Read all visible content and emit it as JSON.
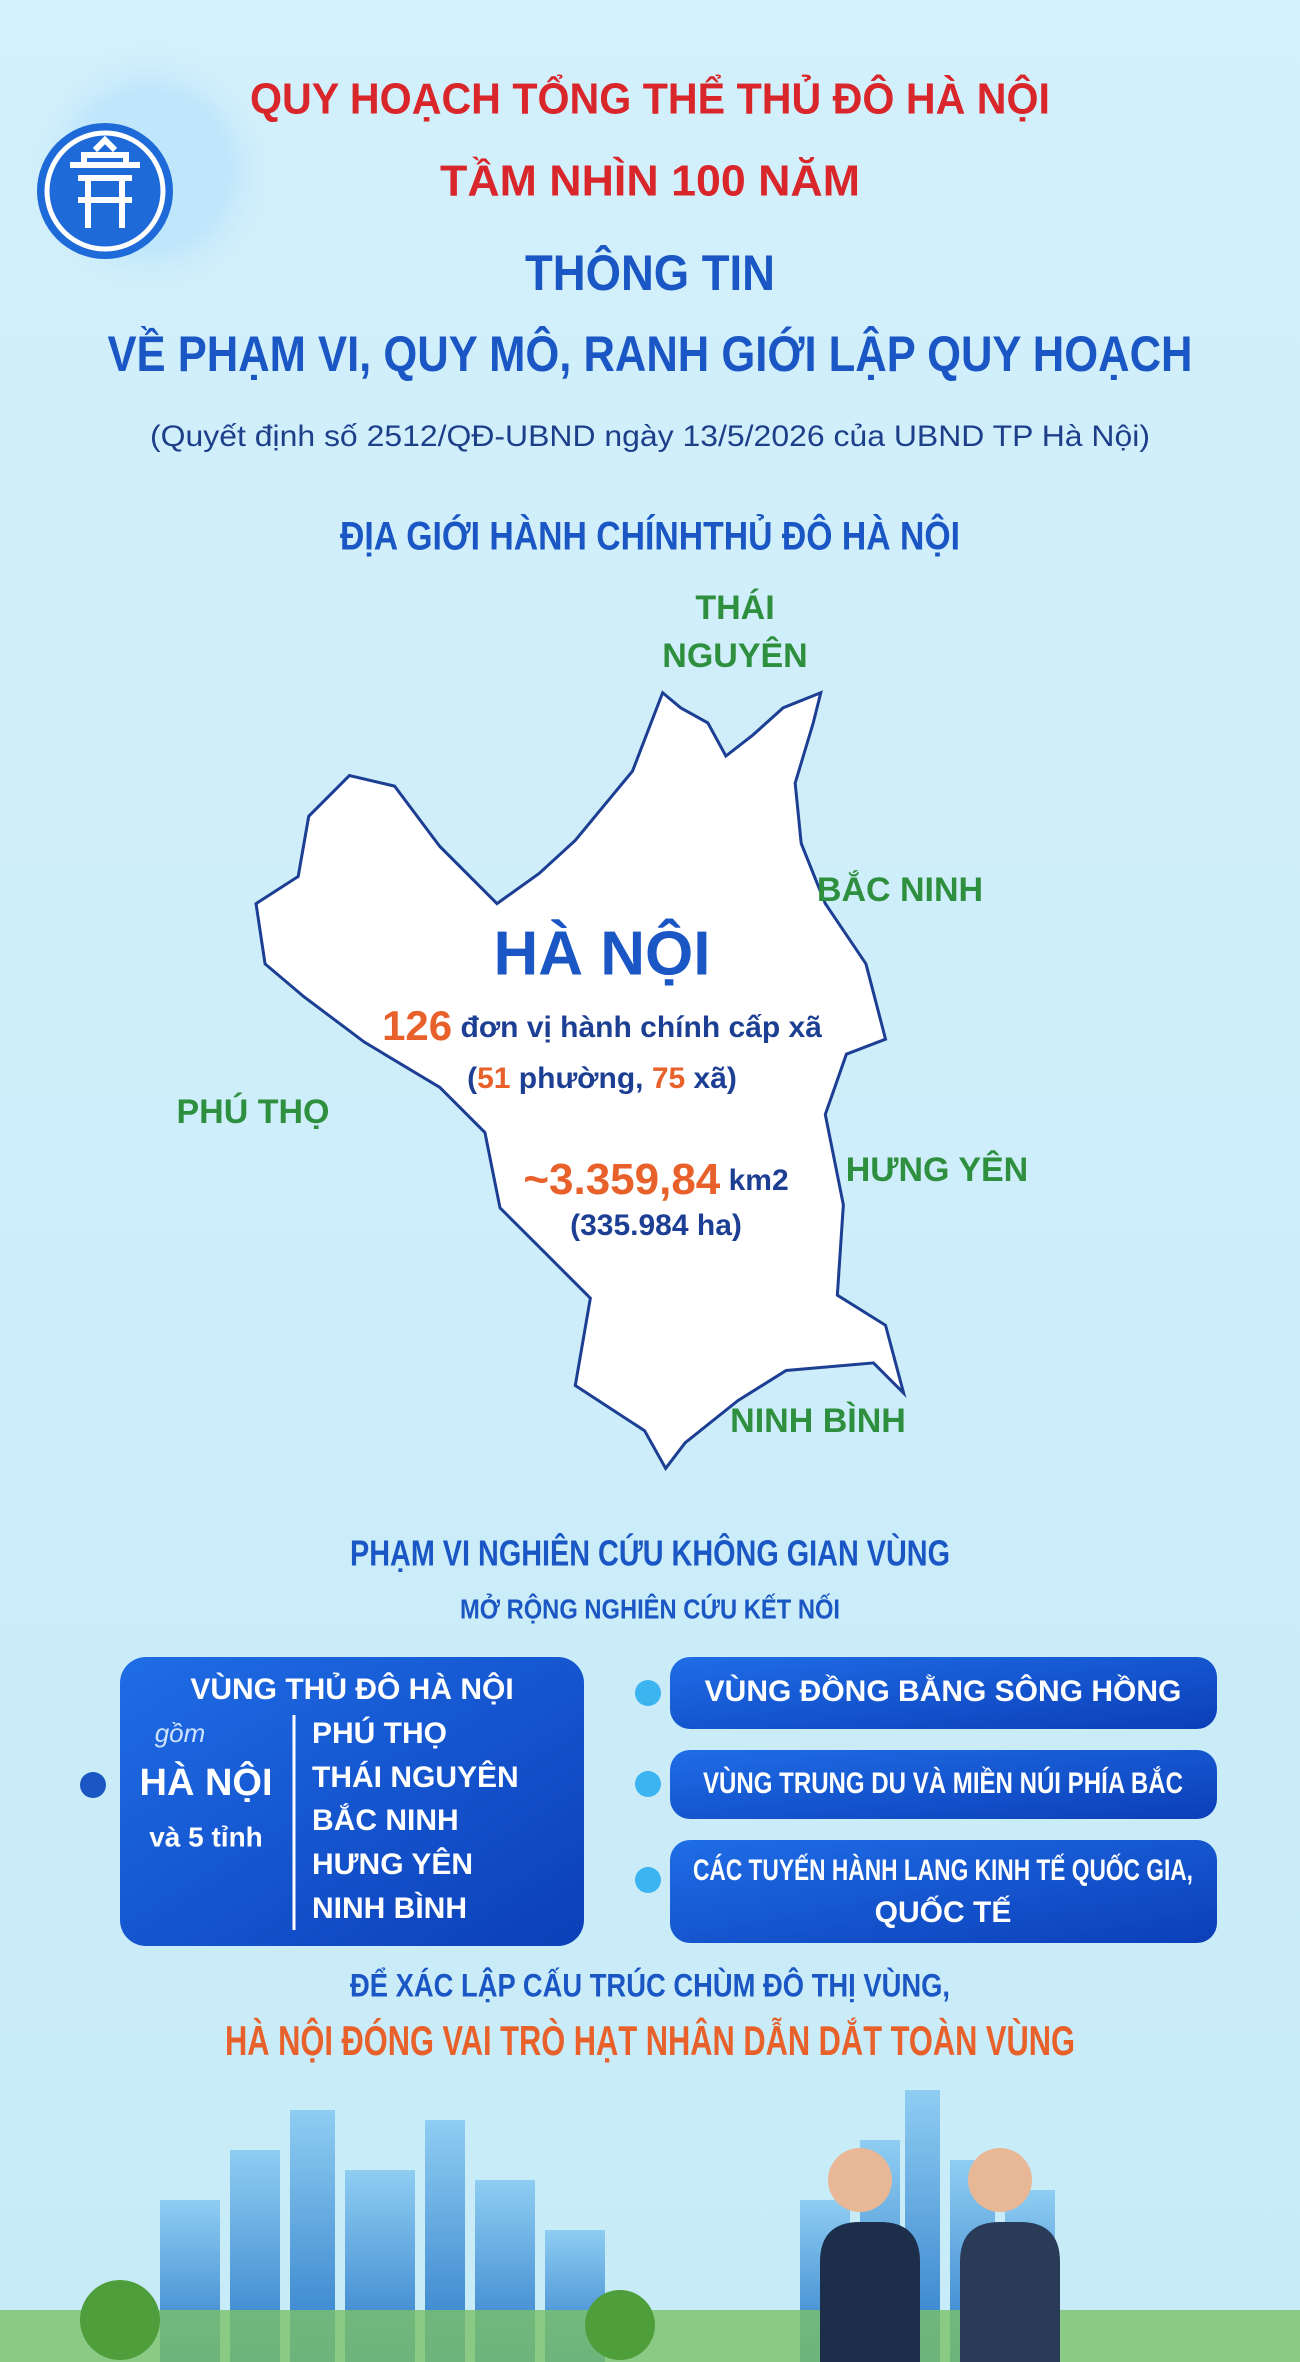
{
  "header": {
    "title_line1": "QUY HOẠCH TỔNG THỂ THỦ ĐÔ HÀ NỘI",
    "title_line2": "TẦM NHÌN 100 NĂM",
    "subtitle_line1": "THÔNG TIN",
    "subtitle_line2": "VỀ PHẠM VI, QUY MÔ, RANH GIỚI LẬP QUY HOẠCH",
    "note": "(Quyết định số 2512/QĐ-UBND ngày 13/5/2026 của UBND TP Hà Nội)"
  },
  "map": {
    "title": "ĐỊA GIỚI HÀNH CHÍNHTHỦ ĐÔ HÀ NỘI",
    "neighbors": [
      [
        "THÁI",
        "NGUYÊN"
      ],
      [
        "BẮC NINH"
      ],
      [
        "PHÚ THỌ"
      ],
      [
        "HƯNG YÊN"
      ],
      [
        "NINH BÌNH"
      ]
    ]
  },
  "city": {
    "name": "HÀ NỘI",
    "units": "126",
    "units_label": "đơn vị hành chính cấp xã",
    "breakdown": [
      "(",
      "51",
      "phường,",
      "75",
      "xã)"
    ],
    "area": "~3.359,84",
    "area_unit": "km2",
    "area_ha": "(335.984 ha)"
  },
  "study": {
    "title": "PHẠM VI NGHIÊN CỨU KHÔNG GIAN VÙNG",
    "subtitle": "MỞ RỘNG NGHIÊN CỨU KẾT NỐI",
    "capital_region": {
      "title": "VÙNG THỦ ĐÔ HÀ NỘI",
      "includes": "gồm",
      "core": "HÀ NỘI",
      "plus": "và 5 tỉnh",
      "provinces": [
        "PHÚ THỌ",
        "THÁI NGUYÊN",
        "BẮC NINH",
        "HƯNG YÊN",
        "NINH BÌNH"
      ]
    },
    "regions": [
      [
        "VÙNG ĐỒNG BẰNG SÔNG HỒNG"
      ],
      [
        "VÙNG TRUNG DU VÀ MIỀN NÚI PHÍA BẮC"
      ],
      [
        "CÁC TUYẾN HÀNH LANG KINH TẾ QUỐC GIA,",
        "QUỐC TẾ"
      ]
    ]
  },
  "conclusion": {
    "line1": "ĐỂ XÁC LẬP CẤU TRÚC CHÙM ĐÔ THỊ VÙNG,",
    "line2": "HÀ NỘI ĐÓNG VAI TRÒ HẠT NHÂN DẪN DẮT TOÀN VÙNG"
  }
}
